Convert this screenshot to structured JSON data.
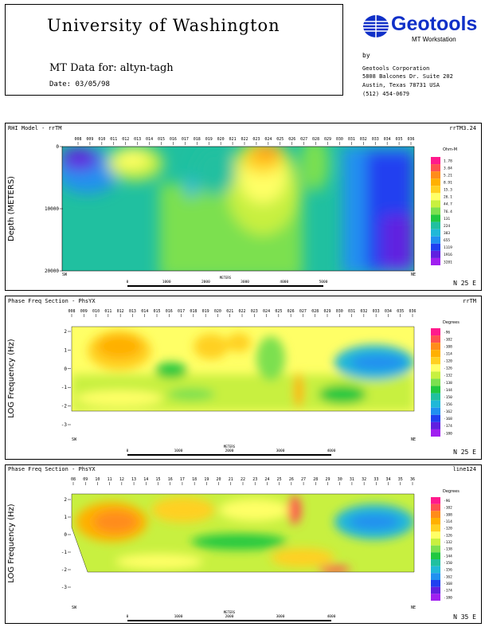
{
  "header": {
    "university": "University of Washington",
    "mt_data_label": "MT Data for: altyn-tagh",
    "date": "Date: 03/05/98",
    "logo_text": "Geotools",
    "logo_sub": "MT Workstation",
    "by": "by",
    "company": "Geotools Corporation",
    "address1": "5808 Balcones Dr. Suite 202",
    "address2": "Austin, Texas 78731 USA",
    "phone": "(512) 454-0679"
  },
  "chart_data": [
    {
      "type": "heatmap",
      "title": "RHI Model - rrTM",
      "right_title": "rrTM3.24",
      "ylabel": "Depth (METERS)",
      "yticks": [
        "0",
        "10000",
        "20000"
      ],
      "ylim": [
        0,
        20000
      ],
      "left_end": "SW",
      "right_end": "NE",
      "scale_ticks": [
        "0",
        "1000",
        "2000",
        "3000",
        "4000",
        "5000"
      ],
      "scale_label": "METERS",
      "orientation": "N 25 E",
      "legend_title": "Ohm-M",
      "legend_values": [
        "1.78",
        "3.04",
        "5.21",
        "8.91",
        "15.3",
        "26.1",
        "44.7",
        "76.4",
        "131",
        "224",
        "383",
        "655",
        "1119",
        "1916",
        "3281"
      ],
      "stations": [
        "008",
        "009",
        "010",
        "011",
        "012",
        "013",
        "014",
        "015",
        "016",
        "017",
        "018",
        "019",
        "020",
        "021",
        "022",
        "023",
        "024",
        "025",
        "026",
        "027",
        "028",
        "029",
        "030",
        "031",
        "032",
        "033",
        "034",
        "035",
        "036"
      ]
    },
    {
      "type": "heatmap",
      "title": "Phase Freq Section - PhsYX",
      "right_title": "rrTM",
      "ylabel": "LOG Frequency (Hz)",
      "yticks": [
        "2",
        "1",
        "0",
        "-1",
        "-2",
        "-3"
      ],
      "ylim": [
        -3,
        2
      ],
      "left_end": "SW",
      "right_end": "NE",
      "scale_ticks": [
        "0",
        "1000",
        "2000",
        "3000",
        "4000"
      ],
      "scale_label": "METERS",
      "orientation": "N 25 E",
      "legend_title": "Degrees",
      "legend_values": [
        "-96",
        "-102",
        "-108",
        "-114",
        "-120",
        "-126",
        "-132",
        "-138",
        "-144",
        "-150",
        "-156",
        "-162",
        "-168",
        "-174",
        "-180"
      ],
      "stations": [
        "008",
        "009",
        "010",
        "011",
        "012",
        "013",
        "014",
        "015",
        "016",
        "017",
        "018",
        "019",
        "020",
        "021",
        "022",
        "023",
        "024",
        "025",
        "026",
        "027",
        "028",
        "029",
        "030",
        "031",
        "032",
        "033",
        "034",
        "035",
        "036"
      ]
    },
    {
      "type": "heatmap",
      "title": "Phase Freq Section - PhsYX",
      "right_title": "line124",
      "ylabel": "LOG Frequency (Hz)",
      "yticks": [
        "2",
        "1",
        "0",
        "-1",
        "-2",
        "-3"
      ],
      "ylim": [
        -3,
        2
      ],
      "left_end": "SW",
      "right_end": "NE",
      "scale_ticks": [
        "0",
        "1000",
        "2000",
        "3000",
        "4000"
      ],
      "scale_label": "METERS",
      "orientation": "N 35 E",
      "legend_title": "Degrees",
      "legend_values": [
        "-96",
        "-102",
        "-108",
        "-114",
        "-120",
        "-126",
        "-132",
        "-138",
        "-144",
        "-150",
        "-156",
        "-162",
        "-168",
        "-174",
        "-180"
      ],
      "stations": [
        "08",
        "09",
        "10",
        "11",
        "12",
        "13",
        "14",
        "15",
        "16",
        "17",
        "18",
        "19",
        "20",
        "21",
        "22",
        "23",
        "24",
        "25",
        "26",
        "27",
        "28",
        "29",
        "30",
        "31",
        "32",
        "33",
        "34",
        "35",
        "36"
      ]
    }
  ],
  "colors": {
    "scale": [
      "#ff1a8c",
      "#ff5050",
      "#ff8c1a",
      "#ffb000",
      "#ffd020",
      "#ffff66",
      "#c8f040",
      "#7ce050",
      "#20c840",
      "#20c0a0",
      "#20b8d8",
      "#2090f0",
      "#2040f0",
      "#6020e0",
      "#a020f0"
    ]
  }
}
